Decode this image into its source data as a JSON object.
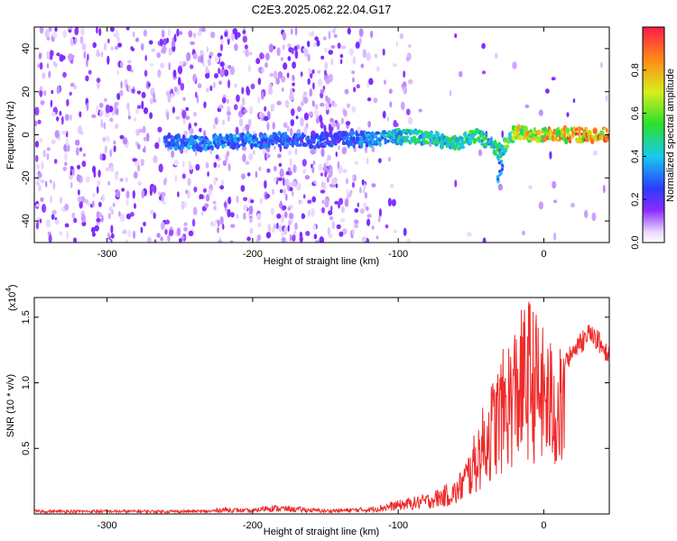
{
  "title": "C2E3.2025.062.22.04.G17",
  "colors": {
    "snr_line": "#ef2a2a",
    "signal_low": "#7b2cff",
    "signal_mid": "#22d3e6",
    "signal_high": "#ff2a2a"
  },
  "chart_data": [
    {
      "type": "heatmap",
      "title": "C2E3.2025.062.22.04.G17",
      "xlabel": "Height of straight line (km)",
      "ylabel": "Frequency (Hz)",
      "xlim": [
        -350,
        45
      ],
      "ylim": [
        -50,
        50
      ],
      "xticks": [
        -300,
        -200,
        -100,
        0
      ],
      "yticks": [
        -40,
        -20,
        0,
        20,
        40
      ],
      "colorbar": {
        "label": "Normalized spectral amplitude",
        "range": [
          0,
          1
        ],
        "ticks": [
          0.0,
          0.2,
          0.4,
          0.6,
          0.8
        ],
        "tick_labels": [
          "0.0",
          "0.2",
          "0.4",
          "0.6",
          "0.8"
        ],
        "colormap": "rainbow"
      },
      "signal_ridge": [
        {
          "x": -260,
          "y": -3,
          "amp": 0.35
        },
        {
          "x": -240,
          "y": -4,
          "amp": 0.4
        },
        {
          "x": -220,
          "y": -3,
          "amp": 0.4
        },
        {
          "x": -200,
          "y": -3,
          "amp": 0.4
        },
        {
          "x": -180,
          "y": -2,
          "amp": 0.35
        },
        {
          "x": -160,
          "y": -3,
          "amp": 0.35
        },
        {
          "x": -140,
          "y": -2,
          "amp": 0.3
        },
        {
          "x": -120,
          "y": -2,
          "amp": 0.4
        },
        {
          "x": -100,
          "y": -1,
          "amp": 0.5
        },
        {
          "x": -80,
          "y": -1,
          "amp": 0.55
        },
        {
          "x": -60,
          "y": -4,
          "amp": 0.55
        },
        {
          "x": -45,
          "y": 0,
          "amp": 0.6
        },
        {
          "x": -30,
          "y": -8,
          "amp": 0.55
        },
        {
          "x": -20,
          "y": 1,
          "amp": 0.8
        },
        {
          "x": -10,
          "y": 0,
          "amp": 0.85
        },
        {
          "x": 0,
          "y": 0,
          "amp": 0.9
        },
        {
          "x": 20,
          "y": 0,
          "amp": 0.95
        },
        {
          "x": 45,
          "y": 0,
          "amp": 0.95
        }
      ]
    },
    {
      "type": "line",
      "xlabel": "Height of straight line (km)",
      "ylabel": "SNR (10 * v/v)",
      "y_multiplier_label": "(x10",
      "y_multiplier_exp": "4",
      "xlim": [
        -350,
        45
      ],
      "ylim": [
        0,
        16500
      ],
      "xticks": [
        -300,
        -200,
        -100,
        0
      ],
      "yticks": [
        5000,
        10000,
        15000
      ],
      "ytick_labels": [
        "0.5",
        "1.0",
        "1.5"
      ],
      "envelope": [
        {
          "x": -350,
          "y": 300
        },
        {
          "x": -230,
          "y": 300
        },
        {
          "x": -220,
          "y": 500
        },
        {
          "x": -200,
          "y": 350
        },
        {
          "x": -190,
          "y": 700
        },
        {
          "x": -150,
          "y": 350
        },
        {
          "x": -120,
          "y": 500
        },
        {
          "x": -100,
          "y": 1000
        },
        {
          "x": -80,
          "y": 1500
        },
        {
          "x": -60,
          "y": 2500
        },
        {
          "x": -50,
          "y": 5000
        },
        {
          "x": -40,
          "y": 8500
        },
        {
          "x": -30,
          "y": 11500
        },
        {
          "x": -20,
          "y": 14000
        },
        {
          "x": -10,
          "y": 16000
        },
        {
          "x": 0,
          "y": 13500
        },
        {
          "x": 10,
          "y": 12000
        },
        {
          "x": 20,
          "y": 13000
        },
        {
          "x": 30,
          "y": 14500
        },
        {
          "x": 38,
          "y": 14000
        },
        {
          "x": 45,
          "y": 12800
        }
      ]
    }
  ]
}
